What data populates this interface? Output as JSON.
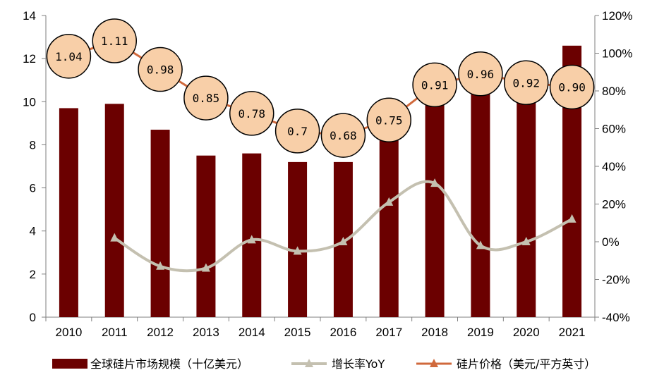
{
  "chart_data": {
    "type": "bar",
    "categories": [
      "2010",
      "2011",
      "2012",
      "2013",
      "2014",
      "2015",
      "2016",
      "2017",
      "2018",
      "2019",
      "2020",
      "2021"
    ],
    "series": [
      {
        "name": "全球硅片市场规模（十亿美元）",
        "type": "bar",
        "axis": "left",
        "values": [
          9.7,
          9.9,
          8.7,
          7.5,
          7.6,
          7.2,
          7.2,
          8.7,
          11.4,
          11.2,
          11.2,
          12.6
        ]
      },
      {
        "name": "增长率YoY",
        "type": "line",
        "axis": "right",
        "values": [
          null,
          0.02,
          -0.13,
          -0.14,
          0.01,
          -0.05,
          0.0,
          0.21,
          0.31,
          -0.02,
          0.0,
          0.12
        ]
      },
      {
        "name": "硅片价格（美元/平方英寸）",
        "type": "line",
        "axis": "left",
        "values": [
          1.04,
          1.11,
          0.98,
          0.85,
          0.78,
          0.7,
          0.68,
          0.75,
          0.91,
          0.96,
          0.92,
          0.9
        ],
        "labels": [
          "1.04",
          "1.11",
          "0.98",
          "0.85",
          "0.78",
          "0.7",
          "0.68",
          "0.75",
          "0.91",
          "0.96",
          "0.92",
          "0.90"
        ]
      }
    ],
    "ylim_left": [
      0,
      14
    ],
    "yticks_left": [
      "0",
      "2",
      "4",
      "6",
      "8",
      "10",
      "12",
      "14"
    ],
    "ylim_right": [
      -0.4,
      1.2
    ],
    "yticks_right": [
      "-40%",
      "-20%",
      "0%",
      "20%",
      "40%",
      "60%",
      "80%",
      "100%",
      "120%"
    ],
    "grid": false,
    "legend_position": "bottom",
    "colors": {
      "bar": "#6B0000",
      "growth": "#C4C0B0",
      "price": "#D0693C",
      "bubble_fill": "#F8CFA8",
      "axis": "#7F7F7F"
    }
  }
}
